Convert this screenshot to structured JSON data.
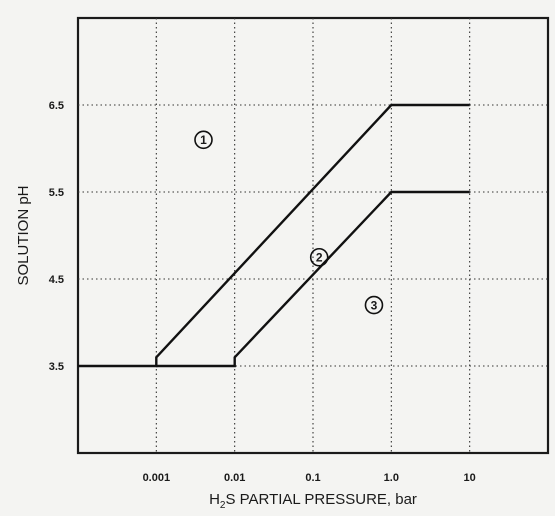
{
  "chart_data": {
    "type": "line",
    "title": "",
    "xlabel_parts": {
      "pre": "H",
      "sub": "2",
      "post": "S PARTIAL PRESSURE, bar"
    },
    "ylabel": "SOLUTION pH",
    "xscale": "log",
    "xlim": [
      0.0001,
      100
    ],
    "ylim": [
      2.5,
      7.5
    ],
    "grid": true,
    "x_tick_labels": [
      "0.001",
      "0.01",
      "0.1",
      "1.0",
      "10"
    ],
    "x_ticks": [
      0.001,
      0.01,
      0.1,
      1.0,
      10
    ],
    "y_tick_labels": [
      "3.5",
      "4.5",
      "5.5",
      "6.5"
    ],
    "y_ticks": [
      3.5,
      4.5,
      5.5,
      6.5
    ],
    "series": [
      {
        "points": [
          [
            0.0001,
            3.5
          ],
          [
            0.001,
            3.5
          ],
          [
            0.001,
            3.6
          ],
          [
            1.0,
            6.5
          ],
          [
            10,
            6.5
          ]
        ]
      },
      {
        "points": [
          [
            0.001,
            3.5
          ],
          [
            0.01,
            3.5
          ],
          [
            0.01,
            3.6
          ],
          [
            1.0,
            5.5
          ],
          [
            10,
            5.5
          ]
        ]
      }
    ],
    "region_labels": [
      {
        "text": "1",
        "x": 0.004,
        "y": 6.1
      },
      {
        "text": "2",
        "x": 0.12,
        "y": 4.75
      },
      {
        "text": "3",
        "x": 0.6,
        "y": 4.2
      }
    ]
  }
}
